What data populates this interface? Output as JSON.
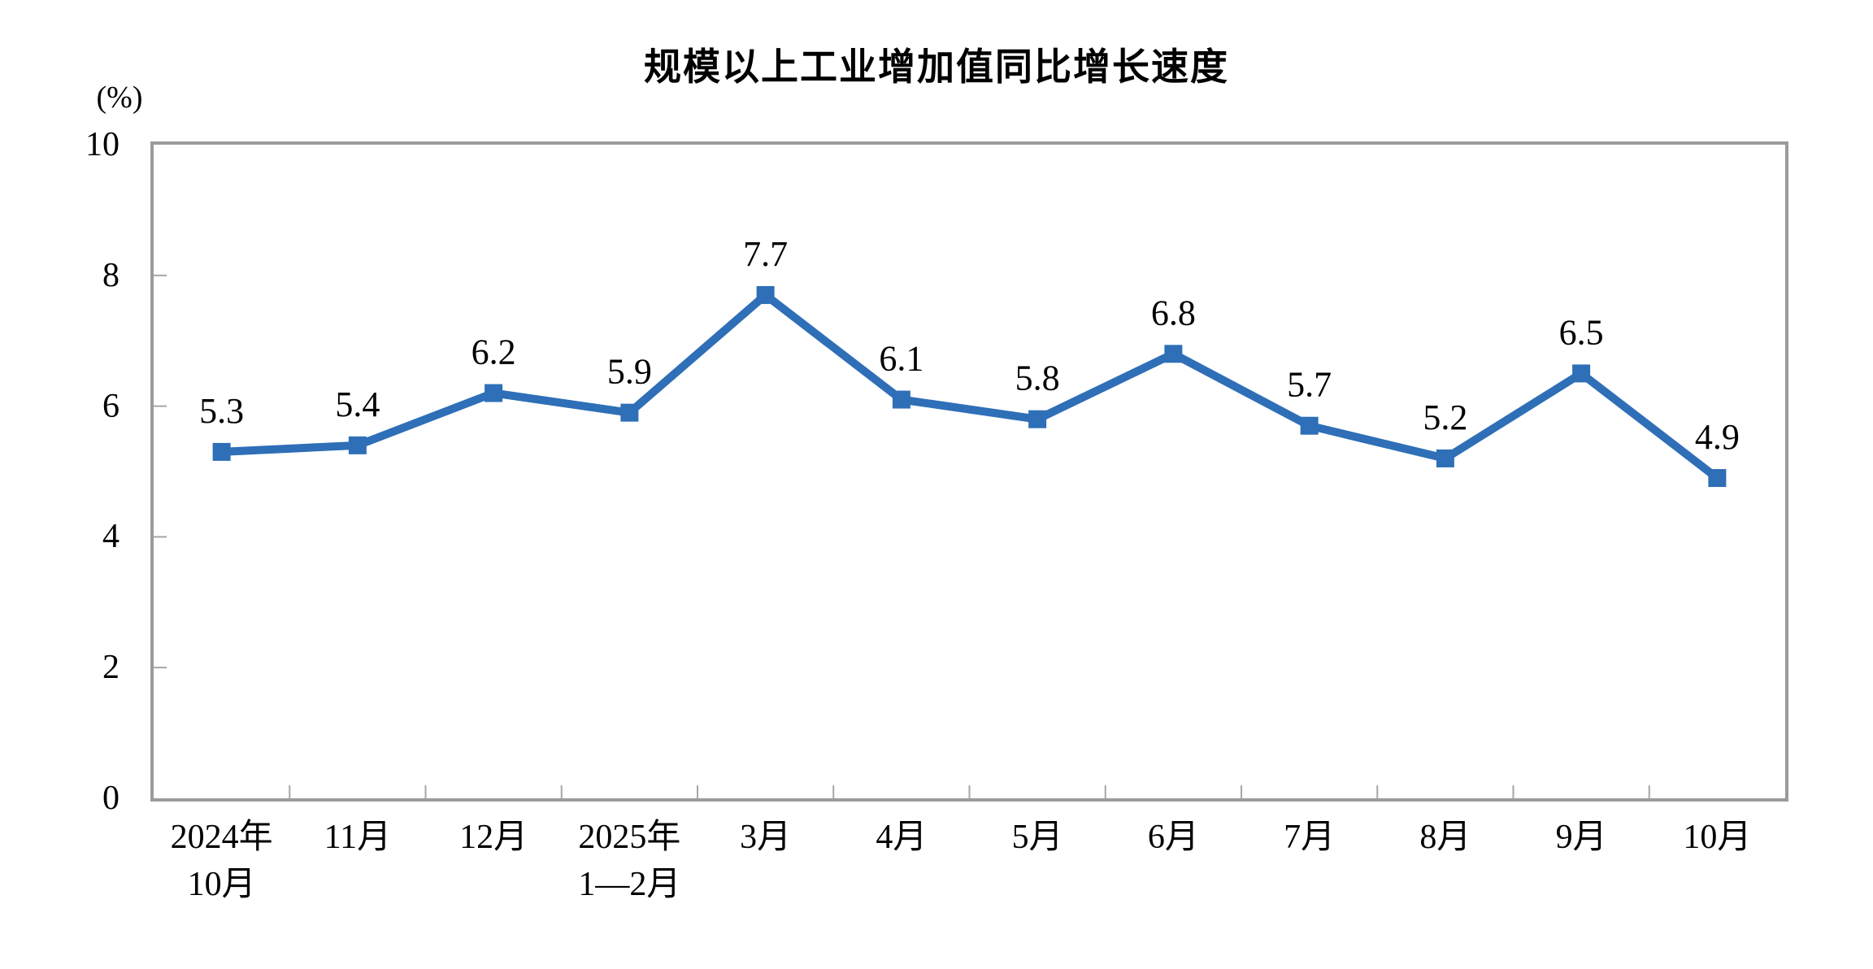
{
  "page": {
    "background": "#ffffff"
  },
  "chart_data": {
    "type": "line",
    "title": "规模以上工业增加值同比增长速度",
    "unit_label": "(%)",
    "categories": [
      [
        "2024年",
        "10月"
      ],
      [
        "11月"
      ],
      [
        "12月"
      ],
      [
        "2025年",
        "1—2月"
      ],
      [
        "3月"
      ],
      [
        "4月"
      ],
      [
        "5月"
      ],
      [
        "6月"
      ],
      [
        "7月"
      ],
      [
        "8月"
      ],
      [
        "9月"
      ],
      [
        "10月"
      ]
    ],
    "values": [
      5.3,
      5.4,
      6.2,
      5.9,
      7.7,
      6.1,
      5.8,
      6.8,
      5.7,
      5.2,
      6.5,
      4.9
    ],
    "ylim": [
      0,
      10
    ],
    "y_ticks": [
      0,
      2,
      4,
      6,
      8,
      10
    ],
    "grid": false,
    "legend_position": "none",
    "line_color": "#2e6fb7",
    "marker_shape": "square",
    "axis_color": "#9b9b9b",
    "tick_color": "#a6a6a6",
    "label_color": "#000000"
  }
}
